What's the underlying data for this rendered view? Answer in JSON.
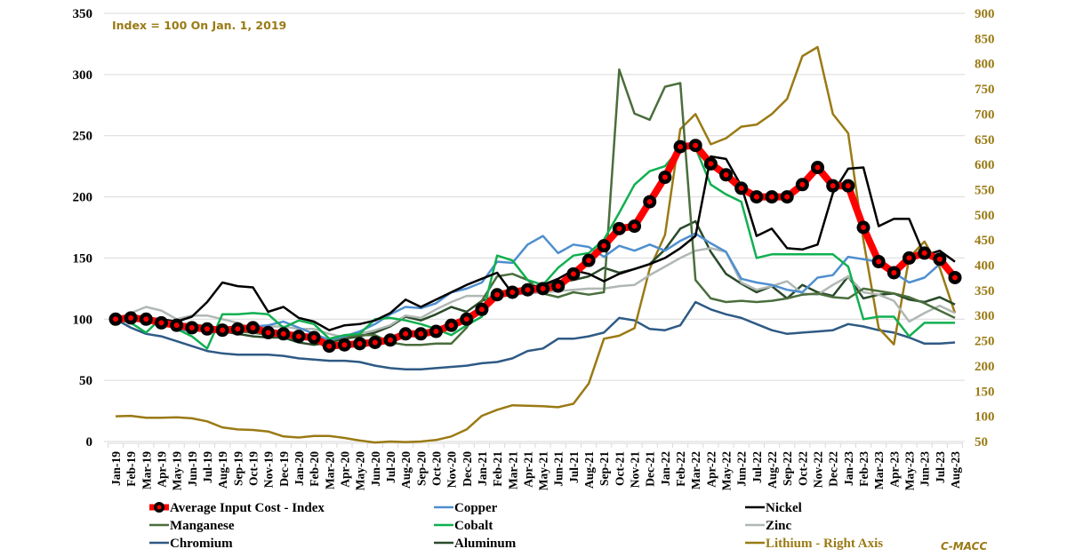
{
  "chart_data": {
    "type": "line",
    "title": "",
    "annotation": "Index = 100 On Jan. 1, 2019",
    "credit": "C-MACC",
    "xlabel": "",
    "ylabel": "",
    "ylim": [
      0,
      350
    ],
    "yticks": [
      "0",
      "50",
      "100",
      "150",
      "200",
      "250",
      "300",
      "350"
    ],
    "y2lim": [
      50,
      900
    ],
    "y2ticks": [
      "50",
      "100",
      "150",
      "200",
      "250",
      "300",
      "350",
      "400",
      "450",
      "500",
      "550",
      "600",
      "650",
      "700",
      "750",
      "800",
      "850",
      "900"
    ],
    "grid": true,
    "legend_position": "bottom",
    "categories": [
      "Jan-19",
      "Feb-19",
      "Mar-19",
      "Apr-19",
      "May-19",
      "Jun-19",
      "Jul-19",
      "Aug-19",
      "Sep-19",
      "Oct-19",
      "Nov-19",
      "Dec-19",
      "Jan-20",
      "Feb-20",
      "Mar-20",
      "Apr-20",
      "May-20",
      "Jun-20",
      "Jul-20",
      "Aug-20",
      "Sep-20",
      "Oct-20",
      "Nov-20",
      "Dec-20",
      "Jan-21",
      "Feb-21",
      "Mar-21",
      "Apr-21",
      "May-21",
      "Jun-21",
      "Jul-21",
      "Aug-21",
      "Sep-21",
      "Oct-21",
      "Nov-21",
      "Dec-21",
      "Jan-22",
      "Feb-22",
      "Mar-22",
      "Apr-22",
      "May-22",
      "Jun-22",
      "Jul-22",
      "Aug-22",
      "Sep-22",
      "Oct-22",
      "Nov-22",
      "Dec-22",
      "Jan-23",
      "Feb-23",
      "Mar-23",
      "Apr-23",
      "May-23",
      "Jun-23",
      "Jul-23",
      "Aug-23"
    ],
    "series": [
      {
        "name": "Average Input Cost - Index",
        "axis": "left",
        "color": "#ff0000",
        "marker": true,
        "values": [
          100,
          101,
          100,
          97,
          95,
          93,
          92,
          91,
          92,
          93,
          89,
          88,
          86,
          85,
          78,
          79,
          80,
          81,
          83,
          88,
          88,
          90,
          95,
          100,
          108,
          120,
          122,
          124,
          125,
          127,
          137,
          148,
          160,
          174,
          176,
          196,
          216,
          241,
          242,
          227,
          218,
          207,
          200,
          200,
          200,
          210,
          224,
          209,
          209,
          175,
          147,
          138,
          150,
          154,
          149,
          134
        ]
      },
      {
        "name": "Copper",
        "axis": "left",
        "color": "#4f8fcf",
        "values": [
          100,
          102,
          102,
          98,
          92,
          90,
          93,
          91,
          92,
          94,
          95,
          98,
          93,
          88,
          83,
          86,
          90,
          96,
          104,
          110,
          109,
          113,
          122,
          125,
          130,
          147,
          146,
          161,
          168,
          154,
          161,
          159,
          151,
          160,
          156,
          161,
          156,
          164,
          170,
          162,
          155,
          133,
          130,
          128,
          124,
          122,
          134,
          136,
          151,
          149,
          147,
          138,
          130,
          134,
          145,
          135
        ]
      },
      {
        "name": "Nickel",
        "axis": "left",
        "color": "#000000",
        "values": [
          100,
          99,
          101,
          100,
          98,
          102,
          114,
          130,
          127,
          126,
          106,
          110,
          101,
          98,
          91,
          95,
          96,
          99,
          105,
          116,
          110,
          116,
          122,
          128,
          133,
          138,
          121,
          126,
          128,
          133,
          140,
          137,
          131,
          137,
          141,
          145,
          150,
          158,
          168,
          233,
          231,
          209,
          168,
          174,
          158,
          157,
          161,
          203,
          223,
          224,
          176,
          182,
          182,
          152,
          156,
          147
        ]
      },
      {
        "name": "Manganese",
        "axis": "left",
        "color": "#4a6e3c",
        "values": [
          100,
          99,
          100,
          98,
          96,
          96,
          94,
          93,
          90,
          89,
          87,
          85,
          84,
          84,
          82,
          85,
          87,
          87,
          81,
          79,
          79,
          80,
          80,
          93,
          115,
          135,
          137,
          132,
          121,
          118,
          122,
          120,
          122,
          304,
          268,
          263,
          290,
          293,
          132,
          117,
          114,
          115,
          114,
          115,
          117,
          120,
          121,
          118,
          117,
          125,
          123,
          121,
          118,
          113,
          107,
          101
        ]
      },
      {
        "name": "Cobalt",
        "axis": "left",
        "color": "#10b050",
        "values": [
          100,
          97,
          89,
          101,
          92,
          86,
          76,
          104,
          104,
          105,
          104,
          93,
          99,
          96,
          84,
          87,
          88,
          100,
          101,
          99,
          96,
          92,
          87,
          95,
          102,
          152,
          148,
          132,
          128,
          142,
          152,
          154,
          165,
          187,
          210,
          221,
          225,
          240,
          240,
          210,
          202,
          196,
          150,
          153,
          153,
          153,
          153,
          153,
          143,
          100,
          102,
          102,
          86,
          97,
          97,
          97
        ]
      },
      {
        "name": "Zinc",
        "axis": "left",
        "color": "#b0b8b4",
        "values": [
          100,
          105,
          110,
          107,
          100,
          103,
          103,
          100,
          97,
          92,
          94,
          94,
          92,
          92,
          88,
          85,
          88,
          91,
          95,
          103,
          101,
          108,
          114,
          119,
          119,
          118,
          120,
          121,
          122,
          123,
          124,
          125,
          125,
          127,
          128,
          136,
          143,
          150,
          156,
          158,
          155,
          130,
          124,
          127,
          131,
          121,
          120,
          128,
          135,
          122,
          120,
          115,
          98,
          105,
          111,
          105
        ]
      },
      {
        "name": "Chromium",
        "axis": "left",
        "color": "#2e5a85",
        "values": [
          100,
          93,
          88,
          86,
          82,
          78,
          74,
          72,
          71,
          71,
          71,
          70,
          68,
          67,
          66,
          66,
          65,
          62,
          60,
          59,
          59,
          60,
          61,
          62,
          64,
          65,
          68,
          74,
          76,
          84,
          84,
          86,
          89,
          101,
          99,
          92,
          91,
          95,
          114,
          108,
          104,
          101,
          96,
          91,
          88,
          89,
          90,
          91,
          96,
          94,
          91,
          89,
          85,
          80,
          80,
          81
        ]
      },
      {
        "name": "Aluminum",
        "axis": "left",
        "color": "#2a4a2a",
        "values": [
          100,
          99,
          98,
          95,
          94,
          94,
          91,
          90,
          88,
          86,
          85,
          85,
          81,
          79,
          81,
          84,
          86,
          89,
          94,
          102,
          99,
          104,
          110,
          106,
          115,
          119,
          122,
          125,
          128,
          130,
          132,
          135,
          142,
          138,
          141,
          145,
          157,
          174,
          180,
          155,
          137,
          129,
          122,
          127,
          117,
          128,
          122,
          119,
          135,
          117,
          120,
          121,
          116,
          114,
          118,
          112
        ]
      },
      {
        "name": "Lithium - Right Axis",
        "axis": "right",
        "color": "#9a7a14",
        "values": [
          100,
          101,
          97,
          97,
          98,
          96,
          90,
          78,
          74,
          73,
          70,
          60,
          58,
          61,
          61,
          57,
          52,
          48,
          50,
          49,
          50,
          53,
          60,
          74,
          101,
          113,
          122,
          121,
          120,
          118,
          125,
          165,
          254,
          260,
          275,
          393,
          460,
          670,
          700,
          640,
          652,
          675,
          679,
          700,
          730,
          815,
          833,
          700,
          662,
          450,
          275,
          243,
          415,
          447,
          395,
          305
        ]
      }
    ]
  },
  "legend": [
    {
      "label": "Average Input Cost - Index",
      "color": "#ff0000",
      "marker": true
    },
    {
      "label": "Copper",
      "color": "#4f8fcf"
    },
    {
      "label": "Nickel",
      "color": "#000000"
    },
    {
      "label": "Manganese",
      "color": "#4a6e3c"
    },
    {
      "label": "Cobalt",
      "color": "#10b050"
    },
    {
      "label": "Zinc",
      "color": "#b0b8b4"
    },
    {
      "label": "Chromium",
      "color": "#2e5a85"
    },
    {
      "label": "Aluminum",
      "color": "#2a4a2a"
    },
    {
      "label": "Lithium - Right Axis",
      "color": "#9a7a14"
    }
  ]
}
